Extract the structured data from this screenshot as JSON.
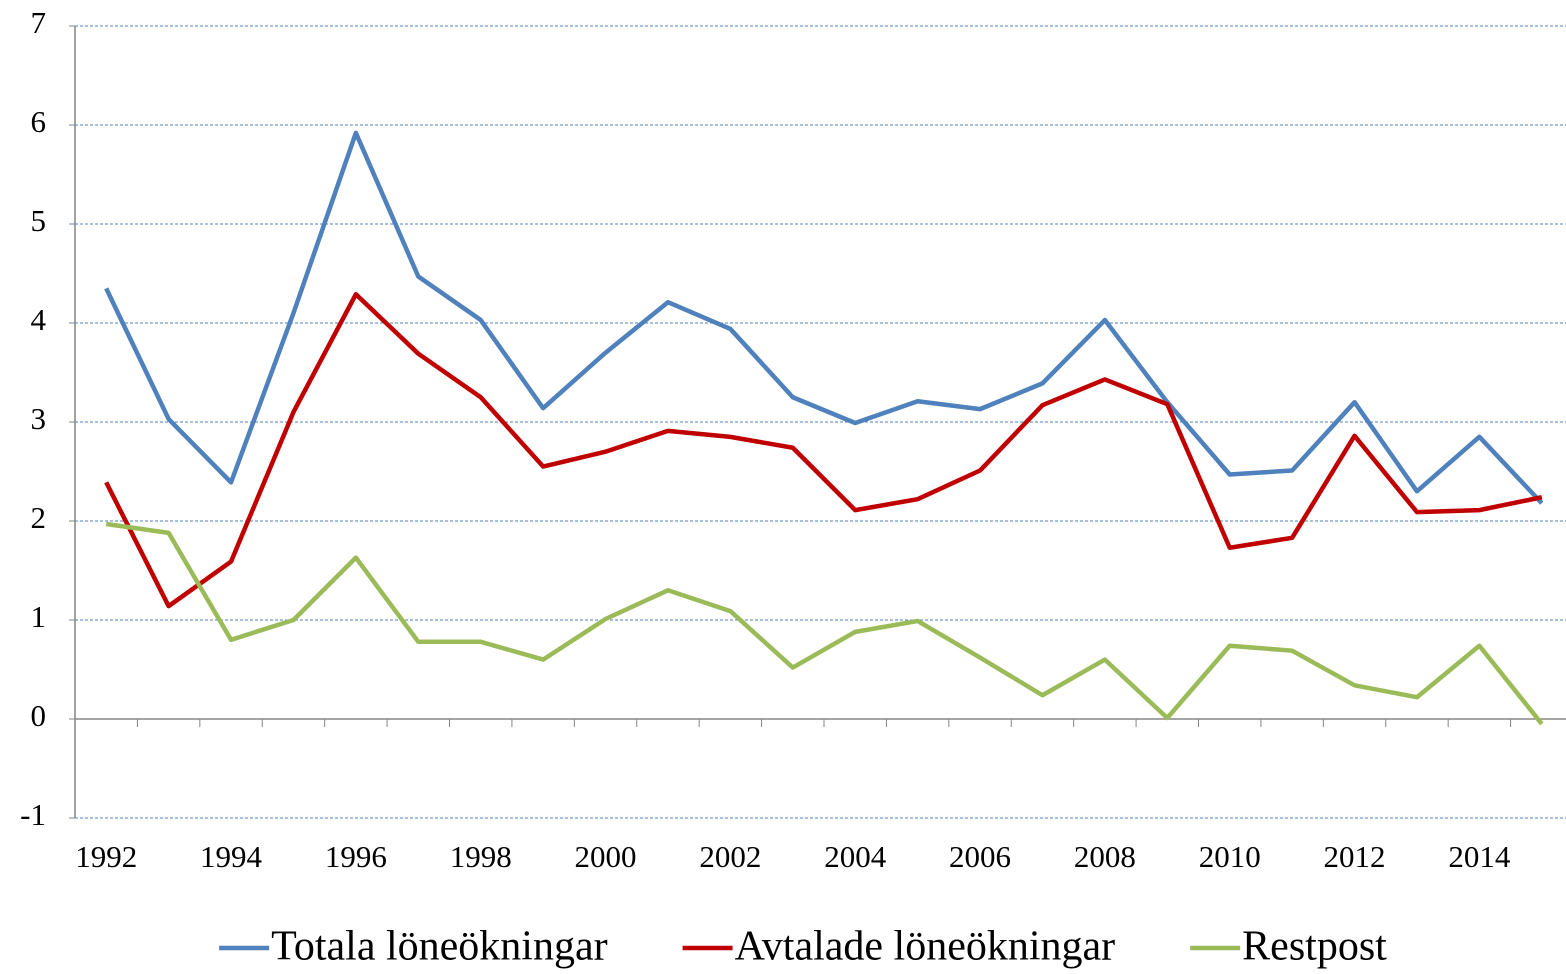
{
  "chart_data": {
    "type": "line",
    "x": [
      1992,
      1993,
      1994,
      1995,
      1996,
      1997,
      1998,
      1999,
      2000,
      2001,
      2002,
      2003,
      2004,
      2005,
      2006,
      2007,
      2008,
      2009,
      2010,
      2011,
      2012,
      2013,
      2014,
      2015
    ],
    "xlim": [
      1991.5,
      2015.5
    ],
    "xticks": [
      1992,
      1994,
      1996,
      1998,
      2000,
      2002,
      2004,
      2006,
      2008,
      2010,
      2012,
      2014
    ],
    "ylim": [
      -1,
      7
    ],
    "yticks": [
      -1,
      0,
      1,
      2,
      3,
      4,
      5,
      6,
      7
    ],
    "grid": true,
    "legend": "bottom",
    "series": [
      {
        "name": "Totala löneökningar",
        "color": "#4f81bd",
        "values": [
          4.35,
          3.03,
          2.39,
          4.1,
          5.92,
          4.47,
          4.03,
          3.14,
          3.7,
          4.21,
          3.94,
          3.25,
          2.99,
          3.21,
          3.13,
          3.39,
          4.03,
          3.2,
          2.47,
          2.51,
          3.2,
          2.3,
          2.85,
          2.18
        ]
      },
      {
        "name": "Avtalade löneökningar",
        "color": "#c00000",
        "values": [
          2.39,
          1.14,
          1.59,
          3.1,
          4.29,
          3.69,
          3.25,
          2.55,
          2.7,
          2.91,
          2.85,
          2.74,
          2.11,
          2.22,
          2.51,
          3.17,
          3.43,
          3.18,
          1.73,
          1.83,
          2.86,
          2.09,
          2.11,
          2.24
        ]
      },
      {
        "name": "Restpost",
        "color": "#9bbb59",
        "values": [
          1.97,
          1.88,
          0.8,
          1.0,
          1.63,
          0.78,
          0.78,
          0.6,
          1.01,
          1.3,
          1.09,
          0.52,
          0.88,
          0.99,
          0.62,
          0.24,
          0.6,
          0.01,
          0.74,
          0.69,
          0.34,
          0.22,
          0.74,
          -0.05
        ]
      }
    ]
  }
}
